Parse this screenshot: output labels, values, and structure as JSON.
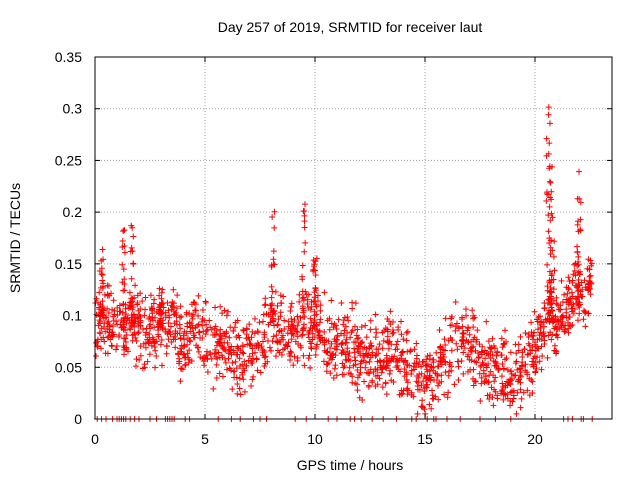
{
  "chart_data": {
    "type": "scatter",
    "title": "Day 257 of 2019, SRMTID for receiver laut",
    "xlabel": "GPS time / hours",
    "ylabel": "SRMTID / TECUs",
    "xlim": [
      0,
      23.5
    ],
    "ylim": [
      0,
      0.35
    ],
    "xticks": [
      0,
      5,
      10,
      15,
      20
    ],
    "xtick_labels": [
      "0",
      "5",
      "10",
      "15",
      "20"
    ],
    "yticks": [
      0,
      0.05,
      0.1,
      0.15,
      0.2,
      0.25,
      0.3,
      0.35
    ],
    "ytick_labels": [
      "0",
      "0.05",
      "0.1",
      "0.15",
      "0.2",
      "0.25",
      "0.3",
      "0.35"
    ],
    "grid": true,
    "marker": "+",
    "color": "#ff0000",
    "series": [
      {
        "name": "laut",
        "trend": [
          [
            0.0,
            0.09
          ],
          [
            0.5,
            0.1
          ],
          [
            1.0,
            0.085
          ],
          [
            1.5,
            0.09
          ],
          [
            2.0,
            0.09
          ],
          [
            2.5,
            0.085
          ],
          [
            3.0,
            0.09
          ],
          [
            3.5,
            0.09
          ],
          [
            4.0,
            0.07
          ],
          [
            4.5,
            0.09
          ],
          [
            5.0,
            0.075
          ],
          [
            5.5,
            0.07
          ],
          [
            6.0,
            0.065
          ],
          [
            6.5,
            0.06
          ],
          [
            7.0,
            0.065
          ],
          [
            7.5,
            0.07
          ],
          [
            8.0,
            0.085
          ],
          [
            8.5,
            0.085
          ],
          [
            9.0,
            0.08
          ],
          [
            9.5,
            0.085
          ],
          [
            10.0,
            0.09
          ],
          [
            10.5,
            0.075
          ],
          [
            11.0,
            0.07
          ],
          [
            11.5,
            0.07
          ],
          [
            12.0,
            0.065
          ],
          [
            12.5,
            0.06
          ],
          [
            13.0,
            0.06
          ],
          [
            13.5,
            0.065
          ],
          [
            14.0,
            0.05
          ],
          [
            14.5,
            0.04
          ],
          [
            15.0,
            0.04
          ],
          [
            15.5,
            0.045
          ],
          [
            16.0,
            0.06
          ],
          [
            16.5,
            0.075
          ],
          [
            17.0,
            0.075
          ],
          [
            17.5,
            0.06
          ],
          [
            18.0,
            0.05
          ],
          [
            18.5,
            0.045
          ],
          [
            19.0,
            0.045
          ],
          [
            19.5,
            0.055
          ],
          [
            20.0,
            0.065
          ],
          [
            20.5,
            0.1
          ],
          [
            21.0,
            0.09
          ],
          [
            21.5,
            0.11
          ],
          [
            22.0,
            0.12
          ],
          [
            22.5,
            0.12
          ]
        ],
        "peaks": [
          [
            0.3,
            0.165
          ],
          [
            1.3,
            0.185
          ],
          [
            1.7,
            0.2
          ],
          [
            3.0,
            0.15
          ],
          [
            8.1,
            0.21
          ],
          [
            9.5,
            0.22
          ],
          [
            10.0,
            0.16
          ],
          [
            20.6,
            0.3
          ],
          [
            20.7,
            0.31
          ],
          [
            20.8,
            0.26
          ],
          [
            22.0,
            0.24
          ],
          [
            22.5,
            0.16
          ]
        ],
        "baseline_x": [
          0.1,
          0.3,
          0.5,
          0.8,
          1.0,
          1.1,
          1.2,
          1.3,
          1.4,
          1.6,
          1.8,
          2.0,
          2.5,
          2.8,
          3.2,
          3.3,
          3.4,
          3.5,
          3.6,
          4.1,
          4.3,
          5.6,
          6.2,
          6.6,
          7.2,
          7.5,
          7.8,
          9.1,
          9.6,
          10.6,
          11.0,
          11.6,
          11.8,
          12.1,
          12.6,
          13.1,
          13.7,
          14.4,
          14.6,
          15.1,
          15.4,
          15.5,
          16.0,
          16.6,
          17.5,
          18.2,
          18.9,
          20.3,
          21.3,
          21.5,
          21.7,
          22.1,
          22.2,
          22.6
        ]
      }
    ]
  }
}
